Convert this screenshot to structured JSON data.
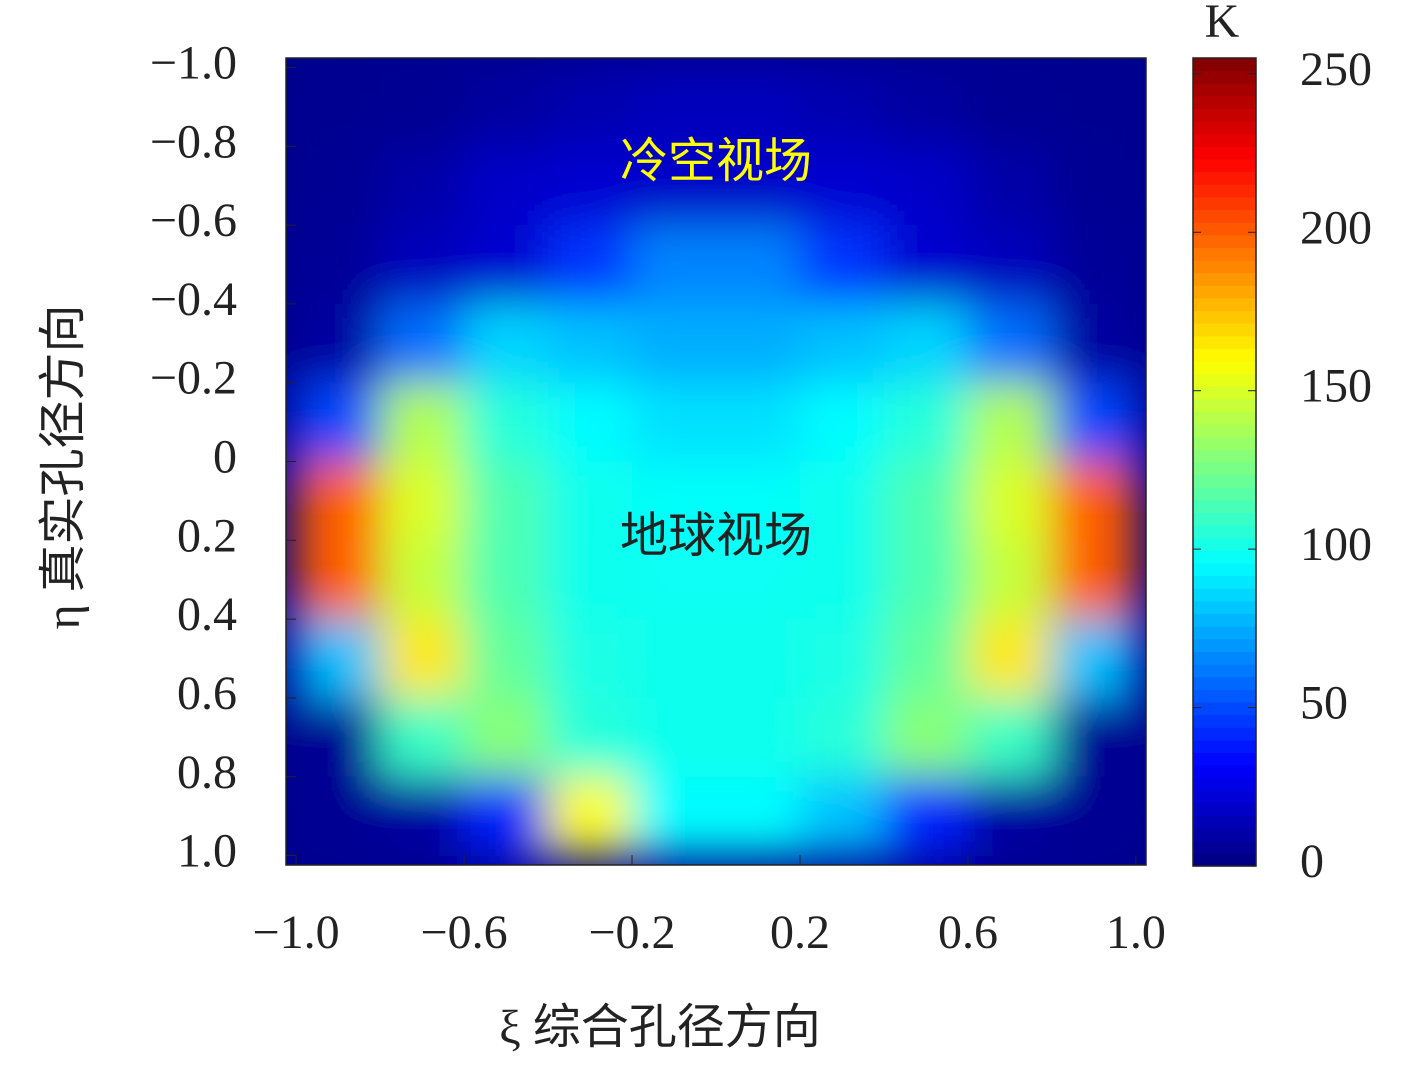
{
  "chart_data": {
    "type": "heatmap",
    "xlabel": "ξ 综合孔径方向",
    "ylabel": "η 真实孔径方向",
    "x": [
      -0.9,
      -0.7,
      -0.5,
      -0.3,
      -0.1,
      0.1,
      0.3,
      0.5,
      0.7,
      0.9
    ],
    "y": [
      -0.9,
      -0.7,
      -0.5,
      -0.3,
      -0.1,
      0.1,
      0.3,
      0.5,
      0.7,
      0.9
    ],
    "z": [
      [
        4,
        5,
        8,
        12,
        15,
        15,
        12,
        8,
        5,
        4
      ],
      [
        5,
        10,
        18,
        20,
        18,
        18,
        20,
        18,
        10,
        5
      ],
      [
        6,
        15,
        20,
        45,
        65,
        65,
        45,
        20,
        15,
        6
      ],
      [
        8,
        60,
        85,
        80,
        75,
        75,
        80,
        85,
        60,
        8
      ],
      [
        50,
        140,
        105,
        95,
        88,
        88,
        95,
        105,
        140,
        50
      ],
      [
        200,
        150,
        115,
        100,
        97,
        97,
        100,
        115,
        150,
        200
      ],
      [
        200,
        145,
        115,
        100,
        98,
        98,
        100,
        115,
        145,
        200
      ],
      [
        80,
        165,
        120,
        102,
        100,
        100,
        102,
        120,
        165,
        80
      ],
      [
        5,
        110,
        130,
        105,
        100,
        100,
        105,
        130,
        110,
        5
      ],
      [
        5,
        8,
        40,
        160,
        95,
        95,
        80,
        40,
        8,
        5
      ]
    ],
    "xlim": [
      -1.024,
      1.024
    ],
    "ylim": [
      -1.024,
      1.024
    ],
    "y_inverted": true,
    "xticks": [
      {
        "value": -1.0,
        "label": "−1.0"
      },
      {
        "value": -0.6,
        "label": "−0.6"
      },
      {
        "value": -0.2,
        "label": "−0.2"
      },
      {
        "value": 0.2,
        "label": "0.2"
      },
      {
        "value": 0.6,
        "label": "0.6"
      },
      {
        "value": 1.0,
        "label": "1.0"
      }
    ],
    "yticks": [
      {
        "value": -1.0,
        "label": "−1.0"
      },
      {
        "value": -0.8,
        "label": "−0.8"
      },
      {
        "value": -0.6,
        "label": "−0.6"
      },
      {
        "value": -0.4,
        "label": "−0.4"
      },
      {
        "value": -0.2,
        "label": "−0.2"
      },
      0,
      {
        "value": 0.2,
        "label": "0.2"
      },
      {
        "value": 0.4,
        "label": "0.4"
      },
      {
        "value": 0.6,
        "label": "0.6"
      },
      {
        "value": 0.8,
        "label": "0.8"
      },
      {
        "value": 1.0,
        "label": "1.0"
      }
    ],
    "colormap": "jet",
    "clim": [
      0,
      255
    ],
    "colorbar_label": "K",
    "colorbar_ticks": [
      0,
      50,
      100,
      150,
      200,
      250
    ],
    "annotations": [
      {
        "text": "冷空视场",
        "x": 0,
        "y": -0.75,
        "color": "#ffff00"
      },
      {
        "text": "地球视场",
        "x": 0,
        "y": 0.2,
        "color": "#222222"
      }
    ]
  }
}
